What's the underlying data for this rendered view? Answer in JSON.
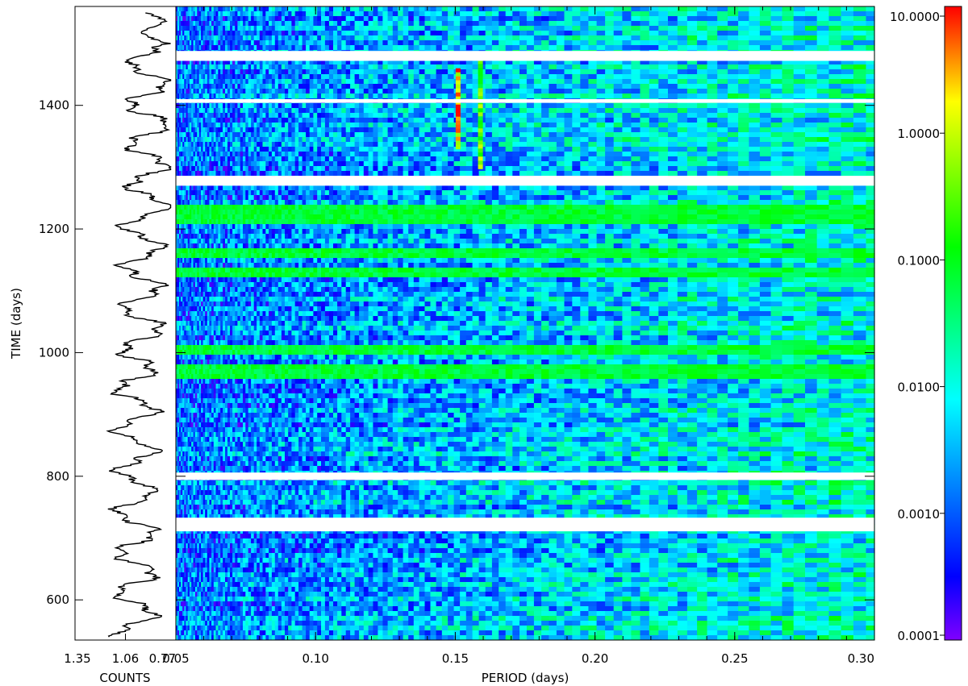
{
  "chart_data": {
    "type": "heatmap",
    "panels": [
      {
        "id": "lightcurve",
        "type": "line",
        "xlabel": "COUNTS",
        "x_ticks": [
          "1.35",
          "1.06",
          "0.77"
        ],
        "xlim": [
          1.35,
          0.77
        ],
        "ylim": [
          535,
          1560
        ],
        "note": "x axis reversed"
      },
      {
        "id": "periodogram",
        "type": "heatmap",
        "xlabel": "PERIOD (days)",
        "ylabel": "TIME (days)",
        "x_ticks": [
          "0.05",
          "0.10",
          "0.15",
          "0.20",
          "0.25",
          "0.30"
        ],
        "xlim": [
          0.05,
          0.3
        ],
        "y_ticks": [
          "600",
          "800",
          "1000",
          "1200",
          "1400"
        ],
        "ylim": [
          535,
          1560
        ],
        "gaps_time_days": [
          [
            1488,
            1472
          ],
          [
            1410,
            1404
          ],
          [
            1286,
            1270
          ],
          [
            806,
            794
          ],
          [
            733,
            711
          ]
        ],
        "features": [
          {
            "period": 0.151,
            "time_range": [
              1330,
              1460
            ],
            "level": 10.0
          },
          {
            "period": 0.159,
            "time_range": [
              1300,
              1480
            ],
            "level": 1.5
          }
        ],
        "green_bands_time_days": [
          1232,
          1215,
          1160,
          1130,
          1004,
          970
        ],
        "colorbar": {
          "scale": "log",
          "range": [
            0.0001,
            10.0
          ],
          "tick_labels": [
            "10.0000",
            "1.0000",
            "0.1000",
            "0.0100",
            "0.0010",
            "0.0001"
          ],
          "colormap": [
            "#7f00ff",
            "#0000ff",
            "#00ffff",
            "#00ff00",
            "#ffff00",
            "#ff0000"
          ]
        }
      }
    ]
  }
}
